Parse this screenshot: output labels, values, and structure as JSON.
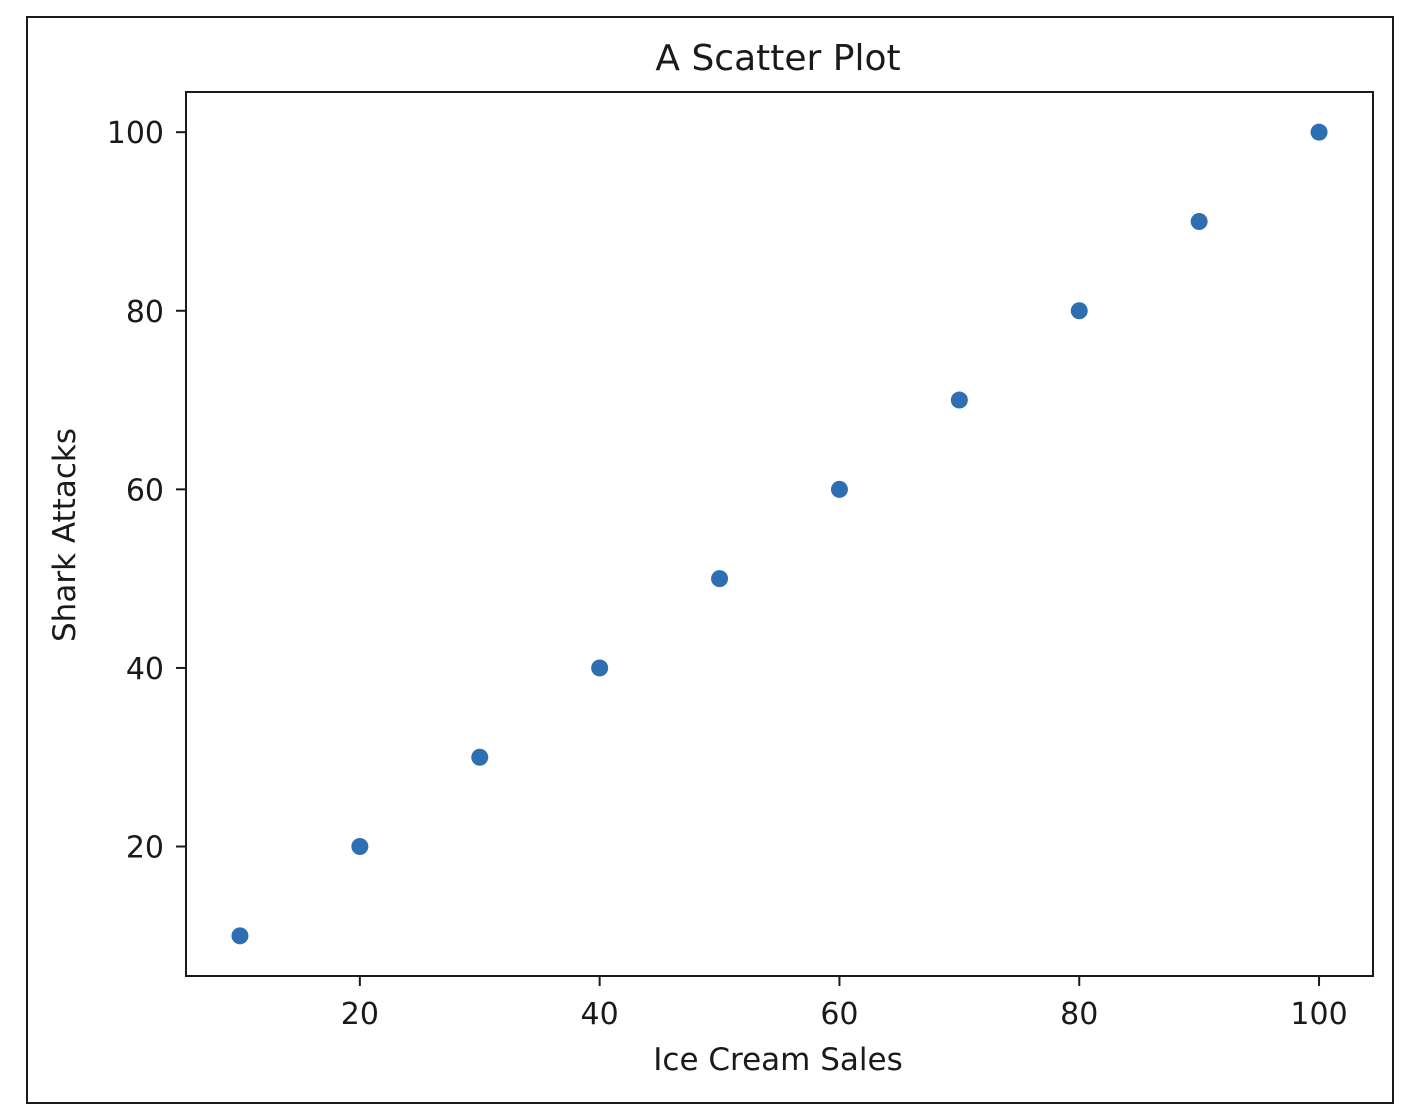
{
  "chart_data": {
    "type": "scatter",
    "title": "A Scatter Plot",
    "xlabel": "Ice Cream Sales",
    "ylabel": "Shark Attacks",
    "x": [
      10,
      20,
      30,
      40,
      50,
      60,
      70,
      80,
      90,
      100
    ],
    "y": [
      10,
      20,
      30,
      40,
      50,
      60,
      70,
      80,
      90,
      100
    ],
    "xlim": [
      5.5,
      104.5
    ],
    "ylim": [
      5.5,
      104.5
    ],
    "xticks": [
      20,
      40,
      60,
      80,
      100
    ],
    "yticks": [
      20,
      40,
      60,
      80,
      100
    ],
    "grid": false,
    "marker_color": "#2e6fb1",
    "axis_color": "#1a1a1a"
  }
}
